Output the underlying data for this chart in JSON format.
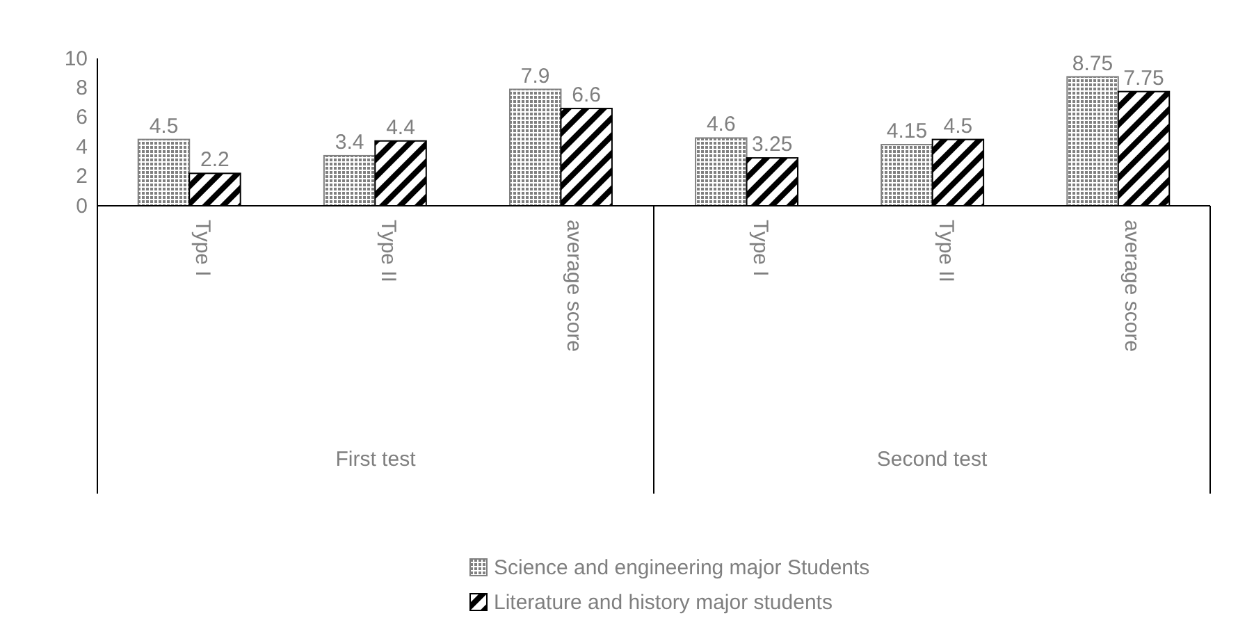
{
  "chart_data": {
    "type": "bar",
    "categories": [
      "Type I",
      "Type II",
      "average score",
      "Type I",
      "Type II",
      "average score"
    ],
    "series": [
      {
        "name": "Science and engineering major Students",
        "color": "#808080",
        "values": [
          4.5,
          3.4,
          7.9,
          4.6,
          4.15,
          8.75
        ]
      },
      {
        "name": "Literature and history major students",
        "color": "#000000",
        "values": [
          2.2,
          4.4,
          6.6,
          3.25,
          4.5,
          7.75
        ]
      }
    ],
    "annotations": [
      "First test",
      "Second test"
    ],
    "ylim": [
      0,
      10
    ],
    "yticks": [
      0,
      2,
      4,
      6,
      8,
      10
    ],
    "data_labels": true,
    "grid": false,
    "legend": "bottom"
  }
}
